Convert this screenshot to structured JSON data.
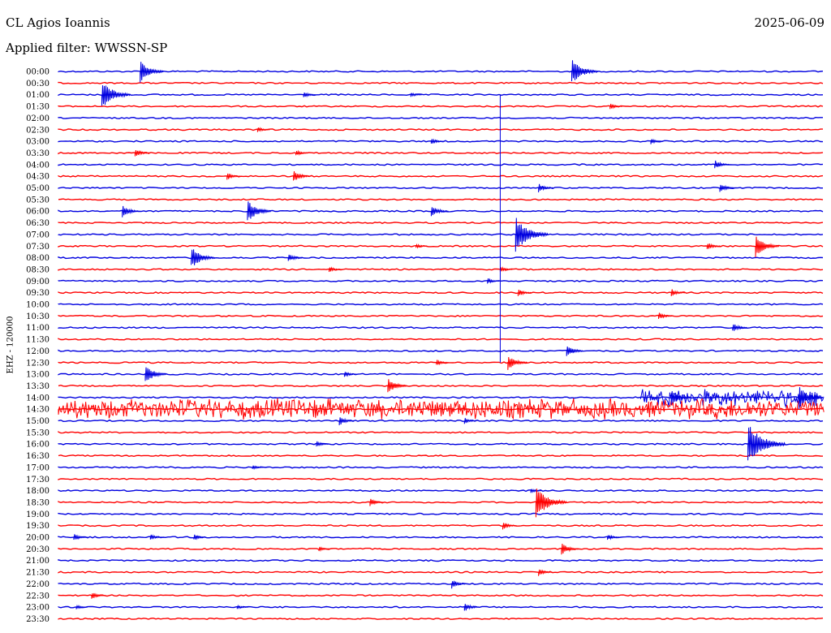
{
  "header": {
    "station": "CL Agios Ioannis",
    "date": "2025-06-09",
    "filter": "Applied filter: WWSSN-SP"
  },
  "axis": {
    "ylabel": "EHZ - 120000"
  },
  "colors": {
    "even": "#0000e0",
    "odd": "#ff0000",
    "background": "#ffffff"
  },
  "chart_data": {
    "type": "line",
    "title": "CL Agios Ioannis",
    "subtitle": "Applied filter: WWSSN-SP",
    "ylabel": "EHZ - 120000",
    "trace_duration_minutes": 30,
    "traces": [
      "00:00",
      "00:30",
      "01:00",
      "01:30",
      "02:00",
      "02:30",
      "03:00",
      "03:30",
      "04:00",
      "04:30",
      "05:00",
      "05:30",
      "06:00",
      "06:30",
      "07:00",
      "07:30",
      "08:00",
      "08:30",
      "09:00",
      "09:30",
      "10:00",
      "10:30",
      "11:00",
      "11:30",
      "12:00",
      "12:30",
      "13:00",
      "13:30",
      "14:00",
      "14:30",
      "15:00",
      "15:30",
      "16:00",
      "16:30",
      "17:00",
      "17:30",
      "18:00",
      "18:30",
      "19:00",
      "19:30",
      "20:00",
      "20:30",
      "21:00",
      "21:30",
      "22:00",
      "22:30",
      "23:00",
      "23:30"
    ],
    "events": [
      {
        "trace": 0,
        "min": 3.2,
        "amp": 14
      },
      {
        "trace": 0,
        "min": 20.1,
        "amp": 16
      },
      {
        "trace": 2,
        "min": 1.7,
        "amp": 18
      },
      {
        "trace": 2,
        "min": 9.6,
        "amp": 4
      },
      {
        "trace": 2,
        "min": 13.8,
        "amp": 3
      },
      {
        "trace": 3,
        "min": 21.6,
        "amp": 4
      },
      {
        "trace": 5,
        "min": 7.8,
        "amp": 4
      },
      {
        "trace": 6,
        "min": 14.6,
        "amp": 4
      },
      {
        "trace": 6,
        "min": 23.2,
        "amp": 4
      },
      {
        "trace": 7,
        "min": 3.0,
        "amp": 6
      },
      {
        "trace": 7,
        "min": 9.3,
        "amp": 4
      },
      {
        "trace": 8,
        "min": 25.7,
        "amp": 6
      },
      {
        "trace": 9,
        "min": 6.6,
        "amp": 5
      },
      {
        "trace": 9,
        "min": 9.2,
        "amp": 8
      },
      {
        "trace": 10,
        "min": 18.8,
        "amp": 6
      },
      {
        "trace": 10,
        "min": 25.9,
        "amp": 6
      },
      {
        "trace": 12,
        "min": 2.5,
        "amp": 8
      },
      {
        "trace": 12,
        "min": 7.4,
        "amp": 14
      },
      {
        "trace": 12,
        "min": 14.6,
        "amp": 8
      },
      {
        "trace": 14,
        "min": 17.9,
        "amp": 22
      },
      {
        "trace": 15,
        "min": 14.0,
        "amp": 3
      },
      {
        "trace": 15,
        "min": 25.4,
        "amp": 5
      },
      {
        "trace": 15,
        "min": 27.3,
        "amp": 14
      },
      {
        "trace": 16,
        "min": 5.2,
        "amp": 14
      },
      {
        "trace": 16,
        "min": 9.0,
        "amp": 6
      },
      {
        "trace": 17,
        "min": 10.6,
        "amp": 4
      },
      {
        "trace": 17,
        "min": 17.3,
        "amp": 4
      },
      {
        "trace": 18,
        "min": 16.8,
        "amp": 4
      },
      {
        "trace": 19,
        "min": 18.0,
        "amp": 5
      },
      {
        "trace": 19,
        "min": 24.0,
        "amp": 5
      },
      {
        "trace": 21,
        "min": 23.5,
        "amp": 5
      },
      {
        "trace": 22,
        "min": 26.4,
        "amp": 6
      },
      {
        "trace": 24,
        "min": 19.9,
        "amp": 8
      },
      {
        "trace": 25,
        "min": 14.8,
        "amp": 4
      },
      {
        "trace": 25,
        "min": 17.6,
        "amp": 10
      },
      {
        "trace": 26,
        "min": 3.4,
        "amp": 12
      },
      {
        "trace": 26,
        "min": 11.2,
        "amp": 4
      },
      {
        "trace": 27,
        "min": 12.9,
        "amp": 10
      },
      {
        "trace": 28,
        "min": 24.0,
        "amp": 10
      },
      {
        "trace": 28,
        "min": 29.0,
        "amp": 14
      },
      {
        "trace": 30,
        "min": 11.0,
        "amp": 6
      },
      {
        "trace": 30,
        "min": 15.9,
        "amp": 4
      },
      {
        "trace": 32,
        "min": 10.1,
        "amp": 4
      },
      {
        "trace": 32,
        "min": 27.0,
        "amp": 26
      },
      {
        "trace": 34,
        "min": 7.6,
        "amp": 3
      },
      {
        "trace": 36,
        "min": 18.5,
        "amp": 3
      },
      {
        "trace": 37,
        "min": 12.2,
        "amp": 5
      },
      {
        "trace": 37,
        "min": 18.7,
        "amp": 20
      },
      {
        "trace": 39,
        "min": 17.4,
        "amp": 5
      },
      {
        "trace": 40,
        "min": 0.6,
        "amp": 5
      },
      {
        "trace": 40,
        "min": 3.6,
        "amp": 4
      },
      {
        "trace": 40,
        "min": 5.3,
        "amp": 4
      },
      {
        "trace": 40,
        "min": 21.5,
        "amp": 4
      },
      {
        "trace": 41,
        "min": 10.2,
        "amp": 3
      },
      {
        "trace": 41,
        "min": 19.7,
        "amp": 8
      },
      {
        "trace": 43,
        "min": 18.8,
        "amp": 5
      },
      {
        "trace": 44,
        "min": 15.4,
        "amp": 6
      },
      {
        "trace": 45,
        "min": 1.3,
        "amp": 5
      },
      {
        "trace": 46,
        "min": 0.7,
        "amp": 3
      },
      {
        "trace": 46,
        "min": 7.0,
        "amp": 3
      },
      {
        "trace": 46,
        "min": 15.9,
        "amp": 6
      }
    ],
    "noisy_traces": [
      {
        "trace": 28,
        "from_min": 22.8,
        "to_min": 30,
        "amp": 12
      },
      {
        "trace": 29,
        "from_min": 0,
        "to_min": 30,
        "amp": 14
      }
    ],
    "spike": {
      "from_trace": 2,
      "to_trace": 25,
      "min": 17.3
    },
    "grid": false,
    "legend": "none"
  }
}
